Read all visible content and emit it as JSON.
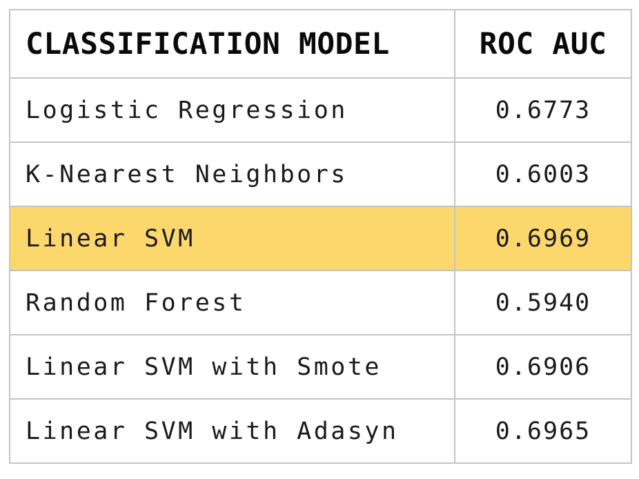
{
  "table": {
    "headers": {
      "model": "CLASSIFICATION MODEL",
      "roc_auc": "ROC AUC"
    },
    "rows": [
      {
        "model": "Logistic Regression",
        "roc_auc": "0.6773",
        "highlighted": false
      },
      {
        "model": "K-Nearest Neighbors",
        "roc_auc": "0.6003",
        "highlighted": false
      },
      {
        "model": "Linear SVM",
        "roc_auc": "0.6969",
        "highlighted": true
      },
      {
        "model": "Random Forest",
        "roc_auc": "0.5940",
        "highlighted": false
      },
      {
        "model": "Linear SVM with Smote",
        "roc_auc": "0.6906",
        "highlighted": false
      },
      {
        "model": "Linear SVM with Adasyn",
        "roc_auc": "0.6965",
        "highlighted": false
      }
    ],
    "highlight_color": "#fcd86c",
    "border_color": "#c4c4c4"
  }
}
